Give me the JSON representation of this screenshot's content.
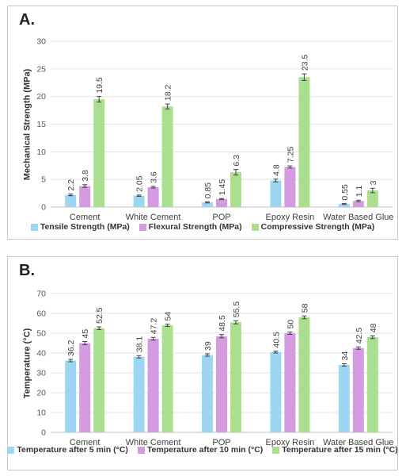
{
  "chart_data": [
    {
      "panel_label": "A.",
      "type": "bar",
      "categories": [
        "Cement",
        "White Cement",
        "POP",
        "Epoxy Resin",
        "Water Based Glue"
      ],
      "series": [
        {
          "name": "Tensile Strength (MPa)",
          "values": [
            2.2,
            2.05,
            0.85,
            4.8,
            0.55
          ],
          "labels": [
            "2.2",
            "2.05",
            "0.85",
            "4.8",
            "0.55"
          ],
          "errors": [
            0.15,
            0.12,
            0.1,
            0.25,
            0.08
          ],
          "color": "#9dd5f2"
        },
        {
          "name": "Flexural Strength (MPa)",
          "values": [
            3.8,
            3.6,
            1.45,
            7.25,
            1.1
          ],
          "labels": [
            "3.8",
            "3.6",
            "1.45",
            "7.25",
            "1.1"
          ],
          "errors": [
            0.25,
            0.15,
            0.1,
            0.2,
            0.15
          ],
          "color": "#d59be0"
        },
        {
          "name": "Compressive Strength (MPa)",
          "values": [
            19.5,
            18.2,
            6.3,
            23.5,
            3
          ],
          "labels": [
            "19.5",
            "18.2",
            "6.3",
            "23.5",
            "3"
          ],
          "errors": [
            0.5,
            0.45,
            0.5,
            0.6,
            0.4
          ],
          "color": "#a9df8f"
        }
      ],
      "ylabel": "Mechanical Strength (MPa)",
      "xlabel": "",
      "ylim": [
        0,
        30
      ],
      "yticks": [
        0,
        5,
        10,
        15,
        20,
        25,
        30
      ],
      "grid": true,
      "legend": "bottom"
    },
    {
      "panel_label": "B.",
      "type": "bar",
      "categories": [
        "Cement",
        "White Cement",
        "POP",
        "Epoxy Resin",
        "Water Based Glue"
      ],
      "series": [
        {
          "name": "Temperature after 5 min (°C)",
          "values": [
            36.2,
            38.1,
            39,
            40.5,
            34
          ],
          "labels": [
            "36.2",
            "38.1",
            "39",
            "40.5",
            "34"
          ],
          "errors": [
            0.6,
            0.6,
            0.6,
            0.5,
            0.6
          ],
          "color": "#9dd5f2"
        },
        {
          "name": "Temperature after 10 min (°C)",
          "values": [
            45,
            47.2,
            48.5,
            50,
            42.5
          ],
          "labels": [
            "45",
            "47.2",
            "48.5",
            "50",
            "42.5"
          ],
          "errors": [
            0.8,
            0.7,
            0.8,
            0.6,
            0.6
          ],
          "color": "#d59be0"
        },
        {
          "name": "Temperature after 15 min (°C)",
          "values": [
            52.5,
            54,
            55.5,
            58,
            48
          ],
          "labels": [
            "52.5",
            "54",
            "55.5",
            "58",
            "48"
          ],
          "errors": [
            0.7,
            0.6,
            0.8,
            0.7,
            0.7
          ],
          "color": "#a9df8f"
        }
      ],
      "ylabel": "Temperature (°C)",
      "xlabel": "",
      "ylim": [
        0,
        70
      ],
      "yticks": [
        0,
        10,
        20,
        30,
        40,
        50,
        60,
        70
      ],
      "grid": true,
      "legend": "bottom"
    }
  ]
}
